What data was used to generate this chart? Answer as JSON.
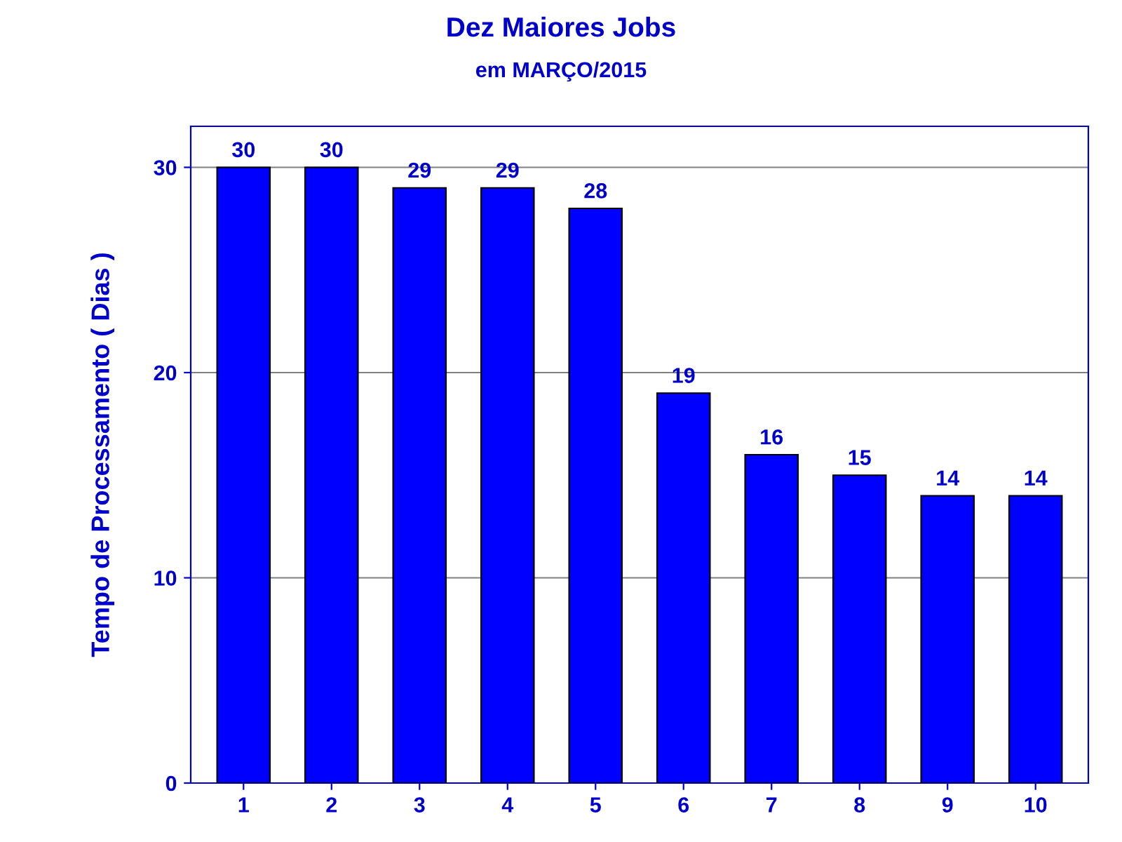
{
  "chart_data": {
    "type": "bar",
    "title": "Dez Maiores Jobs",
    "subtitle": "em MARÇO/2015",
    "ylabel": "Tempo de Processamento ( Dias )",
    "categories": [
      "1",
      "2",
      "3",
      "4",
      "5",
      "6",
      "7",
      "8",
      "9",
      "10"
    ],
    "values": [
      30,
      30,
      29,
      29,
      28,
      19,
      16,
      15,
      14,
      14
    ],
    "color": "#0000ff",
    "ylim": [
      0,
      32
    ],
    "yticks": [
      0,
      10,
      20,
      30
    ],
    "grid": "y",
    "data_labels": true
  }
}
